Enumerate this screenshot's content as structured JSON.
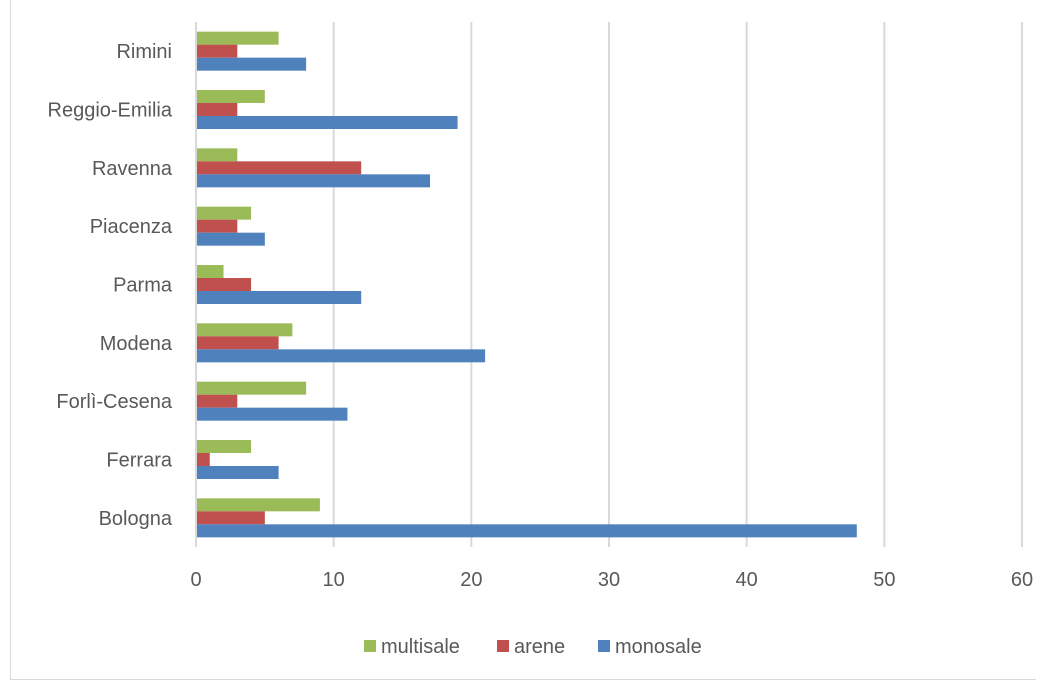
{
  "chart_data": {
    "type": "bar",
    "orientation": "horizontal",
    "categories": [
      "Bologna",
      "Ferrara",
      "Forlì-Cesena",
      "Modena",
      "Parma",
      "Piacenza",
      "Ravenna",
      "Reggio-Emilia",
      "Rimini"
    ],
    "series": [
      {
        "name": "monosale",
        "color": "#4f81bd",
        "values": [
          48,
          6,
          11,
          21,
          12,
          5,
          17,
          19,
          8
        ]
      },
      {
        "name": "arene",
        "color": "#c0504d",
        "values": [
          5,
          1,
          3,
          6,
          4,
          3,
          12,
          3,
          3
        ]
      },
      {
        "name": "multisale",
        "color": "#9bbb59",
        "values": [
          9,
          4,
          8,
          7,
          2,
          4,
          3,
          5,
          6
        ]
      }
    ],
    "xlim": [
      0,
      60
    ],
    "xticks": [
      "0",
      "10",
      "20",
      "30",
      "40",
      "50",
      "60"
    ],
    "grid": true,
    "legend": {
      "placement": "bottom",
      "order": [
        "multisale",
        "arene",
        "monosale"
      ]
    }
  }
}
